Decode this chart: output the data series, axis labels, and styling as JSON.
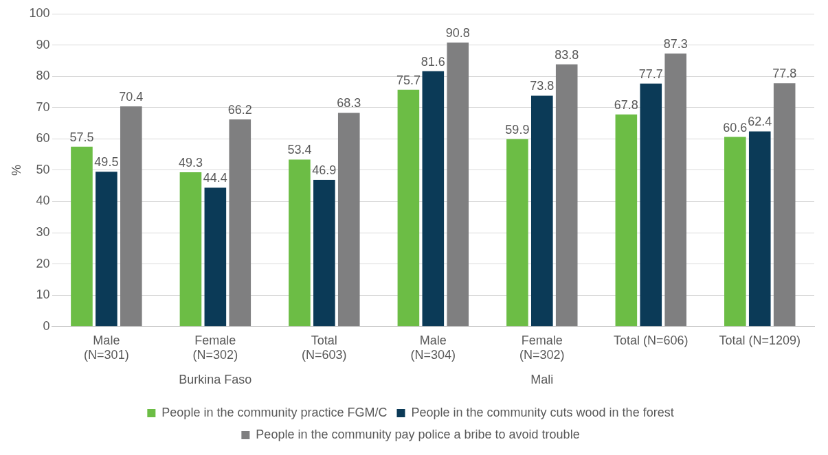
{
  "chart_data": {
    "type": "bar",
    "ylabel": "%",
    "categories": [
      "Male\n(N=301)",
      "Female\n(N=302)",
      "Total\n(N=603)",
      "Male\n(N=304)",
      "Female\n(N=302)",
      "Total (N=606)",
      "Total (N=1209)"
    ],
    "series": [
      {
        "name": "People in the community practice FGM/C",
        "color": "#6cbd45",
        "values": [
          57.5,
          49.3,
          53.4,
          75.7,
          59.9,
          67.8,
          60.6
        ]
      },
      {
        "name": "People in the community cuts wood in the forest",
        "color": "#0b3a57",
        "values": [
          49.5,
          44.4,
          46.9,
          81.6,
          73.8,
          77.7,
          62.4
        ]
      },
      {
        "name": "People in the community pay police a bribe to avoid trouble",
        "color": "#7f7f80",
        "values": [
          70.4,
          66.2,
          68.3,
          90.8,
          83.8,
          87.3,
          77.8
        ]
      }
    ],
    "annotations": [
      "Burkina Faso",
      "Mali"
    ],
    "ylim": [
      0,
      100
    ],
    "yticks": [
      0,
      10,
      20,
      30,
      40,
      50,
      60,
      70,
      80,
      90,
      100
    ],
    "grid": "y",
    "legend": "bottom",
    "data_labels": true
  }
}
